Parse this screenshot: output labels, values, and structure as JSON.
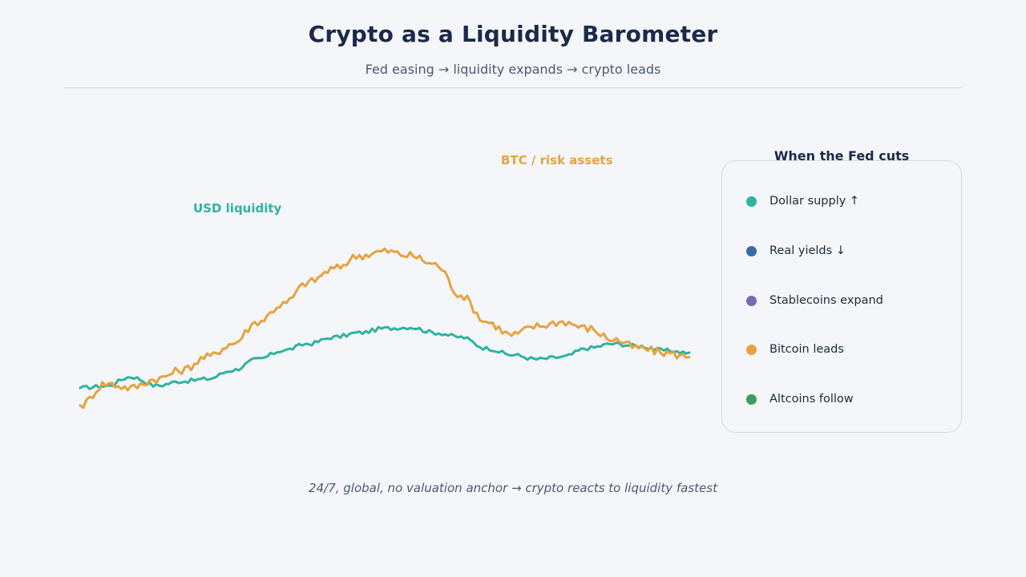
{
  "header": {
    "title": "Crypto as a Liquidity Barometer",
    "subtitle": "Fed easing → liquidity expands → crypto leads"
  },
  "chart_data": {
    "type": "line",
    "title": "",
    "xlabel": "",
    "ylabel": "",
    "grid": false,
    "series": [
      {
        "name": "USD liquidity",
        "color": "#2fb3a0",
        "values": [
          0.8,
          0.88,
          1.3,
          0.9,
          1.1,
          1.2,
          1.6,
          2.1,
          2.5,
          2.8,
          3.1,
          3.3,
          3.5,
          3.55,
          3.3,
          3.1,
          2.6,
          2.3,
          2.1,
          2.2,
          2.6,
          2.8,
          2.7,
          2.5,
          2.4
        ]
      },
      {
        "name": "BTC / risk assets",
        "color": "#e8a23d",
        "values": [
          0.0,
          1.0,
          0.8,
          1.2,
          1.6,
          2.2,
          2.8,
          3.8,
          4.6,
          5.6,
          6.2,
          6.8,
          7.0,
          6.8,
          6.4,
          5.0,
          3.8,
          3.2,
          3.6,
          3.8,
          3.5,
          3.0,
          2.6,
          2.4,
          2.2
        ]
      }
    ]
  },
  "labels": {
    "usd": "USD liquidity",
    "btc": "BTC / risk assets"
  },
  "panel": {
    "title": "When the Fed cuts",
    "items": [
      {
        "label": "Dollar supply ↑",
        "color": "#2fb3a0"
      },
      {
        "label": "Real yields ↓",
        "color": "#3d6aa6"
      },
      {
        "label": "Stablecoins expand",
        "color": "#7b68b5"
      },
      {
        "label": "Bitcoin leads",
        "color": "#e8a23d"
      },
      {
        "label": "Altcoins follow",
        "color": "#3a9e5f"
      }
    ]
  },
  "footnote": "24/7, global, no valuation anchor → crypto reacts to liquidity fastest"
}
